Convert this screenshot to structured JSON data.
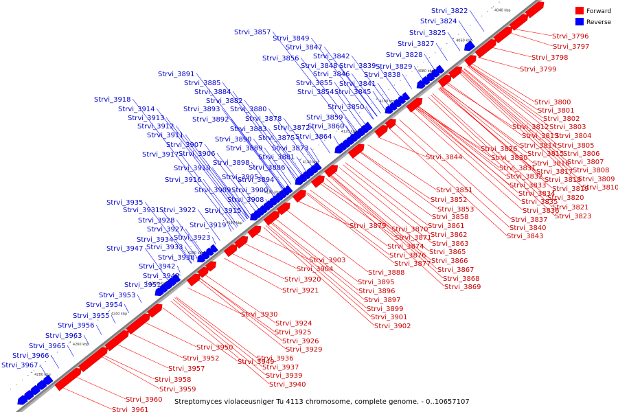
{
  "caption": "Streptomyces violaceusniger Tu 4113 chromosome, complete genome. - 0..10657107",
  "legend": [
    {
      "label": "Forward",
      "color": "#ff0000"
    },
    {
      "label": "Reverse",
      "color": "#0000ff"
    }
  ],
  "colors": {
    "forward": "#ff0000",
    "reverse": "#0000ff",
    "backbone": "#808080"
  },
  "scale_ticks": [
    "4040 kbp",
    "4060 kbp",
    "4080 kbp",
    "4100 kbp",
    "4120 kbp",
    "4140 kbp",
    "4160 kbp",
    "4180 kbp",
    "4200 kbp",
    "4220 kbp",
    "4240 kbp",
    "4260 kbp",
    "4280 kbp"
  ],
  "reverse_labels": [
    "Strvi_3822",
    "Strvi_3824",
    "Strvi_3825",
    "Strvi_3827",
    "Strvi_3828",
    "Strvi_3829",
    "Strvi_3857",
    "Strvi_3849",
    "Strvi_3847",
    "Strvi_3856",
    "Strvi_3842",
    "Strvi_3848",
    "Strvi_3839",
    "Strvi_3846",
    "Strvi_3838",
    "Strvi_3855",
    "Strvi_3841",
    "Strvi_3854",
    "Strvi_3845",
    "Strvi_3850",
    "Strvi_3859",
    "Strvi_3860",
    "Strvi_3864",
    "Strvi_3891",
    "Strvi_3885",
    "Strvi_3884",
    "Strvi_3882",
    "Strvi_3893",
    "Strvi_3880",
    "Strvi_3892",
    "Strvi_3878",
    "Strvi_3883",
    "Strvi_3872",
    "Strvi_3875",
    "Strvi_3890",
    "Strvi_3873",
    "Strvi_3889",
    "Strvi_3881",
    "Strvi_3886",
    "Strvi_3898",
    "Strvi_3894",
    "Strvi_3905",
    "Strvi_3900",
    "Strvi_3908",
    "Strvi_3909",
    "Strvi_3915",
    "Strvi_3918",
    "Strvi_3914",
    "Strvi_3913",
    "Strvi_3912",
    "Strvi_3911",
    "Strvi_3907",
    "Strvi_3917",
    "Strvi_3906",
    "Strvi_3910",
    "Strvi_3916",
    "Strvi_3935",
    "Strvi_3931",
    "Strvi_3922",
    "Strvi_3928",
    "Strvi_3919",
    "Strvi_3927",
    "Strvi_3923",
    "Strvi_3934",
    "Strvi_3947",
    "Strvi_3933",
    "Strvi_3938",
    "Strvi_3942",
    "Strvi_3948",
    "Strvi_3951",
    "Strvi_3953",
    "Strvi_3954",
    "Strvi_3955",
    "Strvi_3956",
    "Strvi_3963",
    "Strvi_3965",
    "Strvi_3966",
    "Strvi_3967"
  ],
  "forward_labels": [
    "Strvi_3796",
    "Strvi_3797",
    "Strvi_3798",
    "Strvi_3799",
    "Strvi_3800",
    "Strvi_3801",
    "Strvi_3802",
    "Strvi_3812",
    "Strvi_3803",
    "Strvi_3813",
    "Strvi_3804",
    "Strvi_3814",
    "Strvi_3805",
    "Strvi_3826",
    "Strvi_3815",
    "Strvi_3806",
    "Strvi_3830",
    "Strvi_3816",
    "Strvi_3807",
    "Strvi_3831",
    "Strvi_3817",
    "Strvi_3808",
    "Strvi_3832",
    "Strvi_3818",
    "Strvi_3809",
    "Strvi_3833",
    "Strvi_3819",
    "Strvi_3810",
    "Strvi_3834",
    "Strvi_3820",
    "Strvi_3835",
    "Strvi_3821",
    "Strvi_3836",
    "Strvi_3823",
    "Strvi_3837",
    "Strvi_3840",
    "Strvi_3843",
    "Strvi_3844",
    "Strvi_3851",
    "Strvi_3852",
    "Strvi_3853",
    "Strvi_3858",
    "Strvi_3861",
    "Strvi_3879",
    "Strvi_3870",
    "Strvi_3862",
    "Strvi_3871",
    "Strvi_3863",
    "Strvi_3874",
    "Strvi_3865",
    "Strvi_3876",
    "Strvi_3866",
    "Strvi_3877",
    "Strvi_3867",
    "Strvi_3888",
    "Strvi_3868",
    "Strvi_3869",
    "Strvi_3903",
    "Strvi_3904",
    "Strvi_3920",
    "Strvi_3895",
    "Strvi_3921",
    "Strvi_3896",
    "Strvi_3897",
    "Strvi_3899",
    "Strvi_3901",
    "Strvi_3902",
    "Strvi_3930",
    "Strvi_3924",
    "Strvi_3925",
    "Strvi_3926",
    "Strvi_3929",
    "Strvi_3950",
    "Strvi_3952",
    "Strvi_3949",
    "Strvi_3936",
    "Strvi_3957",
    "Strvi_3937",
    "Strvi_3939",
    "Strvi_3958",
    "Strvi_3940",
    "Strvi_3959",
    "Strvi_3960",
    "Strvi_3961"
  ]
}
